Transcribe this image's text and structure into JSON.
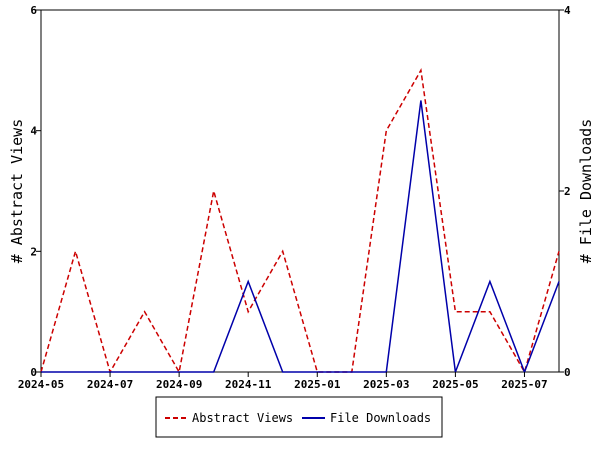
{
  "chart_data": {
    "type": "line",
    "x": [
      "2024-05",
      "2024-06",
      "2024-07",
      "2024-08",
      "2024-09",
      "2024-10",
      "2024-11",
      "2024-12",
      "2025-01",
      "2025-02",
      "2025-03",
      "2025-04",
      "2025-05",
      "2025-06",
      "2025-07",
      "2025-08"
    ],
    "x_tick_labels": [
      "2024-05",
      "2024-07",
      "2024-09",
      "2024-11",
      "2025-01",
      "2025-03",
      "2025-05",
      "2025-07"
    ],
    "ylabel_left": "# Abstract Views",
    "ylabel_right": "# File Downloads",
    "ylim_left": [
      0,
      6
    ],
    "ylim_right": [
      0,
      4
    ],
    "yticks_left": [
      "0",
      "2",
      "4",
      "6"
    ],
    "yticks_right": [
      "0",
      "2",
      "4"
    ],
    "grid": false,
    "legend_position": "bottom",
    "series": [
      {
        "name": "Abstract Views",
        "axis": "left",
        "color": "#cc0000",
        "style": "dashed",
        "values": [
          0,
          2,
          0,
          1,
          0,
          3,
          1,
          2,
          0,
          0,
          4,
          5,
          1,
          1,
          0,
          2
        ]
      },
      {
        "name": "File Downloads",
        "axis": "right",
        "color": "#0000aa",
        "style": "solid",
        "values": [
          0,
          0,
          0,
          0,
          0,
          0,
          1,
          0,
          0,
          0,
          0,
          3,
          0,
          1,
          0,
          1
        ]
      }
    ]
  }
}
